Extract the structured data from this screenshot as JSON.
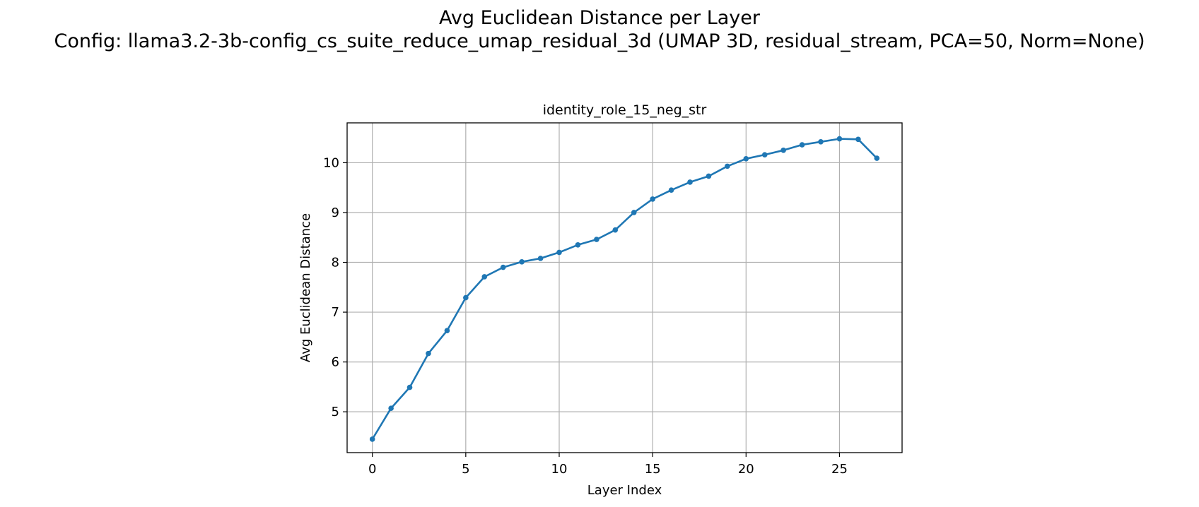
{
  "figure": {
    "title_line1": "Avg Euclidean Distance per Layer",
    "title_line2": "Config: llama3.2-3b-config_cs_suite_reduce_umap_residual_3d (UMAP 3D, residual_stream, PCA=50, Norm=None)"
  },
  "colors": {
    "series": "#1f77b4",
    "grid": "#b0b0b0",
    "axes": "#000000"
  },
  "chart_data": {
    "type": "line",
    "title": "identity_role_15_neg_str",
    "xlabel": "Layer Index",
    "ylabel": "Avg Euclidean Distance",
    "xlim": [
      -1.35,
      28.35
    ],
    "ylim": [
      4.18,
      10.8
    ],
    "xticks": [
      0,
      5,
      10,
      15,
      20,
      25
    ],
    "yticks": [
      5,
      6,
      7,
      8,
      9,
      10
    ],
    "grid": true,
    "marker": "circle",
    "x": [
      0,
      1,
      2,
      3,
      4,
      5,
      6,
      7,
      8,
      9,
      10,
      11,
      12,
      13,
      14,
      15,
      16,
      17,
      18,
      19,
      20,
      21,
      22,
      23,
      24,
      25,
      26,
      27
    ],
    "y": [
      4.45,
      5.07,
      5.49,
      6.17,
      6.63,
      7.29,
      7.71,
      7.9,
      8.01,
      8.08,
      8.2,
      8.35,
      8.46,
      8.65,
      9.0,
      9.27,
      9.45,
      9.61,
      9.73,
      9.93,
      10.08,
      10.16,
      10.25,
      10.36,
      10.42,
      10.48,
      10.47,
      10.09
    ]
  }
}
